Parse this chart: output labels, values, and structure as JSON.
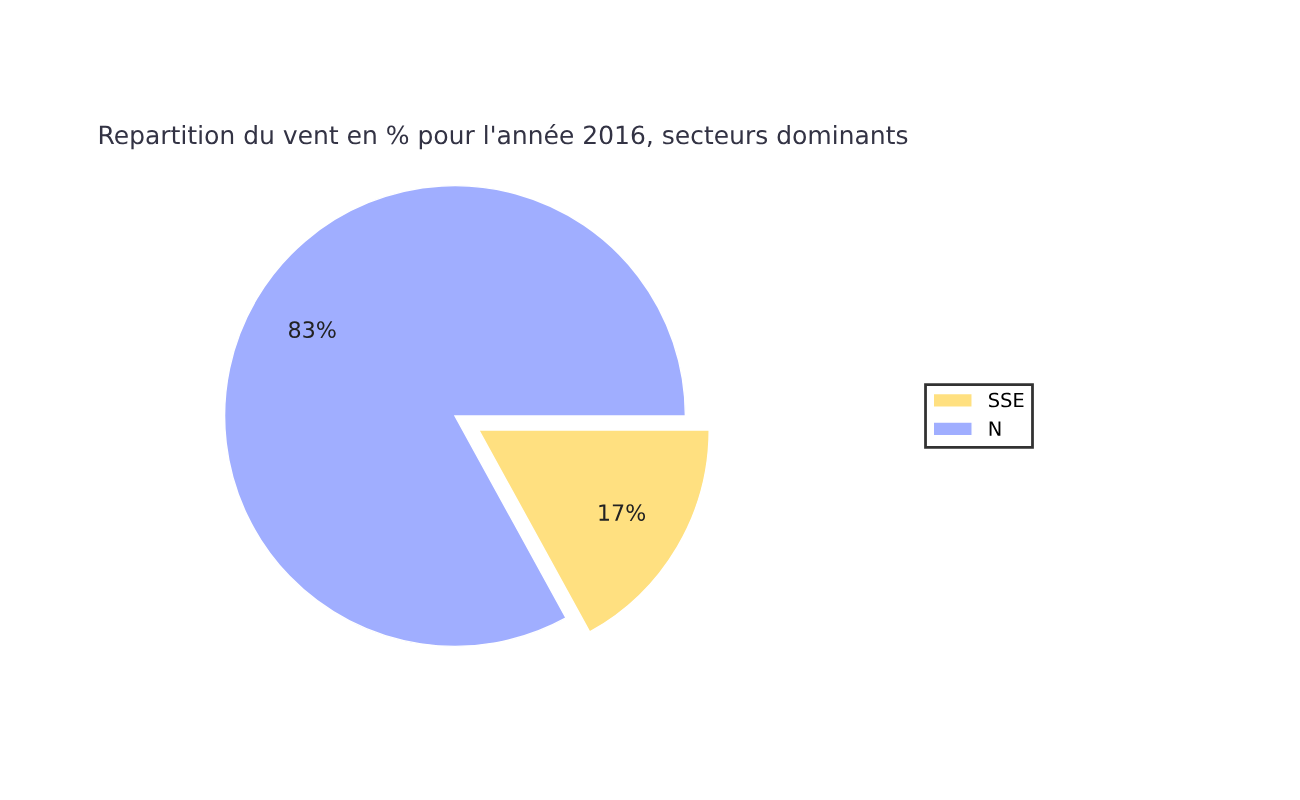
{
  "chart_data": {
    "type": "pie",
    "title": "Repartition du vent en % pour l'année 2016, secteurs dominants",
    "categories": [
      "SSE",
      "N"
    ],
    "values": [
      17,
      83
    ],
    "colors": [
      "#ffe080",
      "#a0aeff"
    ],
    "value_labels": [
      "17%",
      "83%"
    ],
    "legend": "right"
  }
}
